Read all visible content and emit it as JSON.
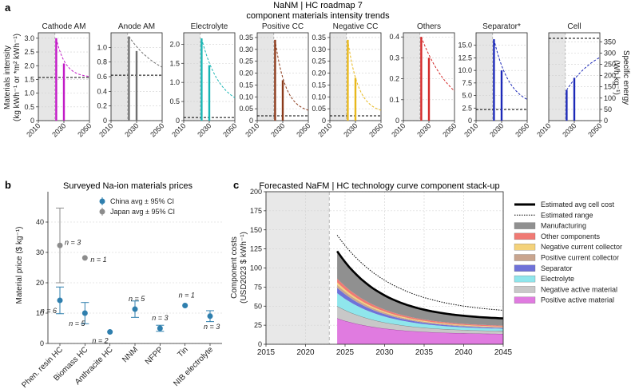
{
  "panel_labels": {
    "a": "a",
    "b": "b",
    "c": "c"
  },
  "panel_a": {
    "title_line1": "NaNM | HC roadmap 7",
    "title_line2": "component materials intensity trends",
    "ylabel_line1": "Materials intensity",
    "ylabel_line2": "(kg kWh⁻¹ or *m² kWh⁻¹)",
    "ylabel_right_line1": "Specific energy",
    "ylabel_right_line2": "(Wh kg⁻¹)"
  },
  "panel_b": {
    "title": "Surveyed Na-ion materials prices",
    "ylabel": "Material price ($ kg⁻¹)"
  },
  "panel_c": {
    "title": "Forecasted NaFM | HC technology curve component stack-up",
    "ylabel_line1": "Component costs",
    "ylabel_line2": "(USD2023 $ kWh⁻¹)"
  },
  "chart_data": [
    {
      "type": "line",
      "panel": "a",
      "subplots": [
        {
          "name": "Cathode AM",
          "color": "#c21bc6",
          "ylim": [
            0,
            3.2
          ],
          "yticks": [
            0,
            0.5,
            1.0,
            1.5,
            2.0,
            2.5,
            3.0
          ],
          "ytick_labels": [
            "0",
            "0.5",
            "1.0",
            "1.5",
            "2.0",
            "2.5",
            "3.0"
          ],
          "bars": [
            {
              "x": 2024,
              "y": 3.0
            },
            {
              "x": 2030,
              "y": 2.08
            }
          ],
          "curve": {
            "x0": 2024,
            "y0": 3.0,
            "asymptote": 1.57,
            "rate": 0.14
          },
          "hline": 1.57
        },
        {
          "name": "Anode AM",
          "color": "#707070",
          "ylim": [
            0,
            1.2
          ],
          "yticks": [
            0,
            0.2,
            0.4,
            0.6,
            0.8,
            1.0
          ],
          "ytick_labels": [
            "0",
            "0.2",
            "0.4",
            "0.6",
            "0.8",
            "1.0"
          ],
          "bars": [
            {
              "x": 2024,
              "y": 1.15
            },
            {
              "x": 2030,
              "y": 0.95
            }
          ],
          "curve": {
            "x0": 2024,
            "y0": 1.15,
            "asymptote": 0.5,
            "rate": 0.04
          },
          "hline": 0.62
        },
        {
          "name": "Electrolyte",
          "color": "#19b6b4",
          "ylim": [
            0,
            2.3
          ],
          "yticks": [
            0,
            0.5,
            1.0,
            1.5,
            2.0
          ],
          "ytick_labels": [
            "0",
            "0.5",
            "1.0",
            "1.5",
            "2.0"
          ],
          "bars": [
            {
              "x": 2024,
              "y": 2.15
            },
            {
              "x": 2030,
              "y": 1.45
            }
          ],
          "curve": {
            "x0": 2024,
            "y0": 2.15,
            "asymptote": 0.3,
            "rate": 0.07
          },
          "hline": 0.08
        },
        {
          "name": "Positive CC",
          "color": "#8b3a1a",
          "ylim": [
            0,
            0.37
          ],
          "yticks": [
            0,
            0.05,
            0.1,
            0.15,
            0.2,
            0.25,
            0.3,
            0.35
          ],
          "ytick_labels": [
            "0",
            "0.05",
            "0.10",
            "0.15",
            "0.20",
            "0.25",
            "0.30",
            "0.35"
          ],
          "bars": [
            {
              "x": 2024,
              "y": 0.34
            },
            {
              "x": 2030,
              "y": 0.17
            }
          ],
          "curve": {
            "x0": 2024,
            "y0": 0.34,
            "asymptote": 0.03,
            "rate": 0.12
          },
          "hline": 0.02
        },
        {
          "name": "Negative CC",
          "color": "#e8b81c",
          "ylim": [
            0,
            0.37
          ],
          "yticks": [
            0,
            0.05,
            0.1,
            0.15,
            0.2,
            0.25,
            0.3,
            0.35
          ],
          "ytick_labels": [
            "0",
            "0.05",
            "0.10",
            "0.15",
            "0.20",
            "0.25",
            "0.30",
            "0.35"
          ],
          "bars": [
            {
              "x": 2024,
              "y": 0.34
            },
            {
              "x": 2030,
              "y": 0.18
            }
          ],
          "curve": {
            "x0": 2024,
            "y0": 0.34,
            "asymptote": 0.03,
            "rate": 0.12
          },
          "hline": 0.02
        },
        {
          "name": "Others",
          "color": "#d42a2a",
          "ylim": [
            0,
            0.42
          ],
          "yticks": [
            0,
            0.1,
            0.2,
            0.3,
            0.4
          ],
          "ytick_labels": [
            "0",
            "0.1",
            "0.2",
            "0.3",
            "0.4"
          ],
          "bars": [
            {
              "x": 2024,
              "y": 0.4
            },
            {
              "x": 2030,
              "y": 0.3
            }
          ],
          "curve": {
            "x0": 2024,
            "y0": 0.4,
            "asymptote": 0.0,
            "rate": 0.04
          },
          "hline": null
        },
        {
          "name": "Separator*",
          "color": "#1d2ab8",
          "ylim": [
            0,
            17.5
          ],
          "yticks": [
            0,
            2.5,
            5.0,
            7.5,
            10.0,
            12.5,
            15.0
          ],
          "ytick_labels": [
            "0",
            "2.5",
            "5.0",
            "7.5",
            "10.0",
            "12.5",
            "15.0"
          ],
          "bars": [
            {
              "x": 2024,
              "y": 16.2
            },
            {
              "x": 2030,
              "y": 10.0
            }
          ],
          "curve": {
            "x0": 2024,
            "y0": 16.2,
            "asymptote": 2.5,
            "rate": 0.08
          },
          "hline": 2.2
        },
        {
          "name": "Cell",
          "color": "#1d2ab8",
          "ylim": [
            0,
            390
          ],
          "yticks": [
            0,
            50,
            100,
            150,
            200,
            250,
            300,
            350
          ],
          "ytick_labels": [
            "0",
            "50",
            "100",
            "150",
            "200",
            "250",
            "300",
            "350"
          ],
          "bars": [
            {
              "x": 2024,
              "y": 135
            },
            {
              "x": 2030,
              "y": 190
            }
          ],
          "curve": {
            "x0": 2024,
            "y0": 135,
            "asymptote": 360,
            "rate": 0.04
          },
          "hline": 365,
          "right_axis": true
        }
      ],
      "xlim": [
        2010,
        2050
      ],
      "xticks": [
        2010,
        2030,
        2050
      ],
      "xtick_labels": [
        "2010",
        "2030",
        "2050"
      ],
      "historical_shade": [
        2010,
        2023
      ]
    },
    {
      "type": "scatter",
      "panel": "b",
      "categories": [
        "Phen. resin HC",
        "Biomass HC",
        "Anthracite HC",
        "NNM",
        "NFPP",
        "Tin",
        "NIB electrolyte"
      ],
      "ylim": [
        0,
        50
      ],
      "yticks": [
        0,
        10,
        20,
        30,
        40
      ],
      "ytick_labels": [
        "0",
        "10",
        "20",
        "30",
        "40"
      ],
      "series": [
        {
          "name": "China avg ± 95% CI",
          "color": "#2f7fae",
          "points": [
            {
              "cat": 0,
              "y": 14.2,
              "lo": 9.8,
              "hi": 18.6,
              "n": "n = 6"
            },
            {
              "cat": 1,
              "y": 10.0,
              "lo": 6.5,
              "hi": 13.5,
              "n": "n = 5"
            },
            {
              "cat": 2,
              "y": 3.8,
              "lo": null,
              "hi": null,
              "n": "n = 2"
            },
            {
              "cat": 3,
              "y": 11.3,
              "lo": 8.6,
              "hi": 14.0,
              "n": "n = 5"
            },
            {
              "cat": 4,
              "y": 5.0,
              "lo": 4.0,
              "hi": 6.0,
              "n": "n = 3"
            },
            {
              "cat": 5,
              "y": 12.5,
              "lo": null,
              "hi": null,
              "n": "n = 1"
            },
            {
              "cat": 6,
              "y": 9.0,
              "lo": 7.2,
              "hi": 10.8,
              "n": "n = 3"
            }
          ]
        },
        {
          "name": "Japan avg ± 95% CI",
          "color": "#8c8c8c",
          "points": [
            {
              "cat": 0,
              "y": 32.3,
              "lo": 20.0,
              "hi": 44.6,
              "n": "n = 3"
            },
            {
              "cat": 1,
              "y": 28.2,
              "lo": null,
              "hi": null,
              "n": "n = 1"
            }
          ]
        }
      ]
    },
    {
      "type": "area",
      "panel": "c",
      "xlim": [
        2015,
        2045
      ],
      "ylim": [
        0,
        200
      ],
      "xticks": [
        2015,
        2020,
        2025,
        2030,
        2035,
        2040,
        2045
      ],
      "xtick_labels": [
        "2015",
        "2020",
        "2025",
        "2030",
        "2035",
        "2040",
        "2045"
      ],
      "yticks": [
        0,
        25,
        50,
        75,
        100,
        125,
        150,
        175,
        200
      ],
      "ytick_labels": [
        "0",
        "25",
        "50",
        "75",
        "100",
        "125",
        "150",
        "175",
        "200"
      ],
      "historical_shade": [
        2015,
        2023
      ],
      "x_start": 2024,
      "series": [
        {
          "name": "Positive active material",
          "color": "#e07be0",
          "start": 34,
          "end": 13,
          "rate": 0.17
        },
        {
          "name": "Negative active material",
          "color": "#c8c8c8",
          "start": 16,
          "end": 3.5,
          "rate": 0.17
        },
        {
          "name": "Electrolyte",
          "color": "#8fe6ec",
          "start": 17,
          "end": 2.5,
          "rate": 0.17
        },
        {
          "name": "Separator",
          "color": "#6f72d8",
          "start": 7,
          "end": 1.0,
          "rate": 0.17
        },
        {
          "name": "Positive current collector",
          "color": "#c9a58f",
          "start": 4,
          "end": 0.8,
          "rate": 0.17
        },
        {
          "name": "Negative current collector",
          "color": "#f4d27a",
          "start": 3,
          "end": 0.6,
          "rate": 0.17
        },
        {
          "name": "Other components",
          "color": "#f07a74",
          "start": 5,
          "end": 1.2,
          "rate": 0.17
        },
        {
          "name": "Manufacturing",
          "color": "#909090",
          "start": 35,
          "end": 8.5,
          "rate": 0.17
        }
      ],
      "lines": [
        {
          "name": "Estimated avg cell cost",
          "style": "solid",
          "color": "#000000",
          "start": 122,
          "end": 31.4,
          "rate": 0.17
        },
        {
          "name": "Estimated range",
          "style": "dotted",
          "color": "#000000",
          "start": 143,
          "end": 39,
          "rate": 0.14
        }
      ]
    }
  ]
}
